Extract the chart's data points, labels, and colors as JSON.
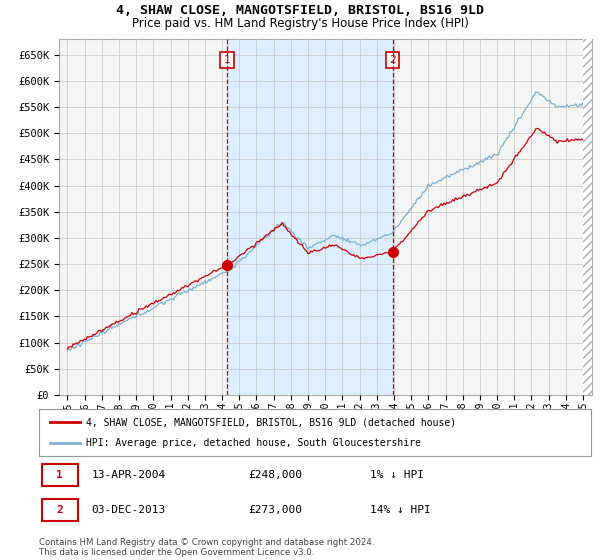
{
  "title": "4, SHAW CLOSE, MANGOTSFIELD, BRISTOL, BS16 9LD",
  "subtitle": "Price paid vs. HM Land Registry's House Price Index (HPI)",
  "ylabel_ticks": [
    "£0",
    "£50K",
    "£100K",
    "£150K",
    "£200K",
    "£250K",
    "£300K",
    "£350K",
    "£400K",
    "£450K",
    "£500K",
    "£550K",
    "£600K",
    "£650K"
  ],
  "ytick_values": [
    0,
    50000,
    100000,
    150000,
    200000,
    250000,
    300000,
    350000,
    400000,
    450000,
    500000,
    550000,
    600000,
    650000
  ],
  "xlim_start": 1994.5,
  "xlim_end": 2025.5,
  "ylim_min": 0,
  "ylim_max": 680000,
  "grid_color": "#cccccc",
  "background_color": "#ffffff",
  "plot_bg_color": "#f5f5f5",
  "hpi_line_color": "#7ab0d4",
  "price_line_color": "#cc0000",
  "shade_color": "#ddeeff",
  "transaction1": {
    "date": "13-APR-2004",
    "price": 248000,
    "label": "1",
    "x_approx": 2004.28
  },
  "transaction2": {
    "date": "03-DEC-2013",
    "price": 273000,
    "label": "2",
    "x_approx": 2013.92
  },
  "legend_line1": "4, SHAW CLOSE, MANGOTSFIELD, BRISTOL, BS16 9LD (detached house)",
  "legend_line2": "HPI: Average price, detached house, South Gloucestershire",
  "footer1": "Contains HM Land Registry data © Crown copyright and database right 2024.",
  "footer2": "This data is licensed under the Open Government Licence v3.0.",
  "table_row1": [
    "1",
    "13-APR-2004",
    "£248,000",
    "1% ↓ HPI"
  ],
  "table_row2": [
    "2",
    "03-DEC-2013",
    "£273,000",
    "14% ↓ HPI"
  ]
}
